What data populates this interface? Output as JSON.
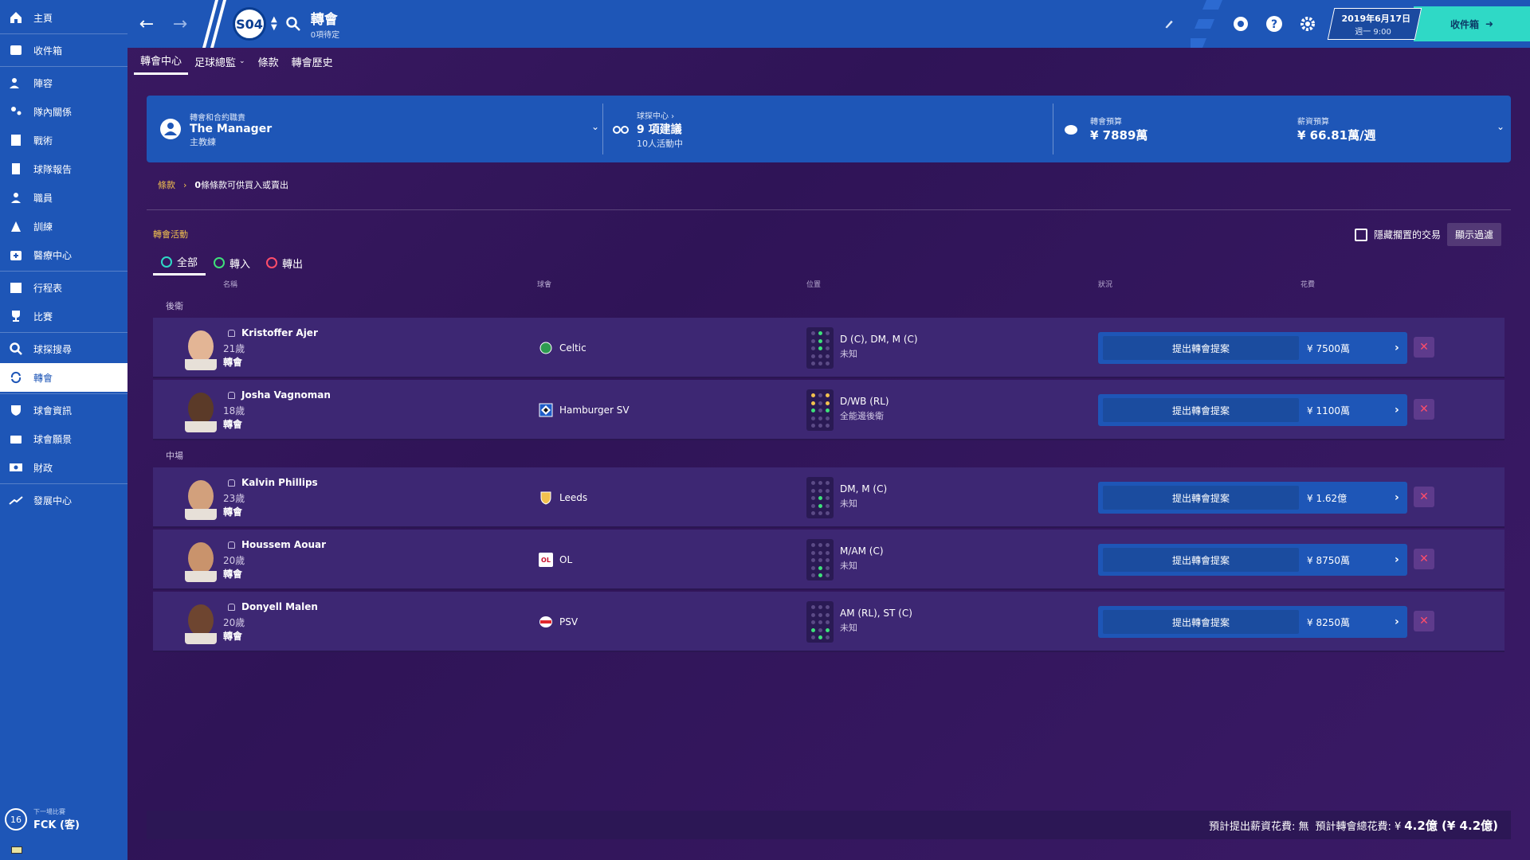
{
  "sidebar": {
    "items": [
      {
        "label": "主頁",
        "icon": "home-icon"
      },
      {
        "label": "收件箱",
        "icon": "inbox-icon"
      },
      {
        "label": "陣容",
        "icon": "squad-icon"
      },
      {
        "label": "隊內關係",
        "icon": "dynamics-icon"
      },
      {
        "label": "戰術",
        "icon": "tactics-icon"
      },
      {
        "label": "球隊報告",
        "icon": "report-icon"
      },
      {
        "label": "職員",
        "icon": "staff-icon"
      },
      {
        "label": "訓練",
        "icon": "training-icon"
      },
      {
        "label": "醫療中心",
        "icon": "medical-icon"
      },
      {
        "label": "行程表",
        "icon": "calendar-icon"
      },
      {
        "label": "比賽",
        "icon": "trophy-icon"
      },
      {
        "label": "球探搜尋",
        "icon": "search-icon"
      },
      {
        "label": "轉會",
        "icon": "transfer-icon"
      },
      {
        "label": "球會資訊",
        "icon": "shield-icon"
      },
      {
        "label": "球會願景",
        "icon": "vision-icon"
      },
      {
        "label": "財政",
        "icon": "finance-icon"
      },
      {
        "label": "發展中心",
        "icon": "development-icon"
      }
    ],
    "next_match_label": "下一場比賽",
    "next_match": "FCK (客)",
    "next_match_badge": "16"
  },
  "topbar": {
    "title": "轉會",
    "subtitle": "0項待定",
    "club_crest": "S04",
    "date": "2019年6月17日",
    "day_time": "週一 9:00",
    "inbox_label": "收件箱"
  },
  "subtabs": [
    "轉會中心",
    "足球總監",
    "條款",
    "轉會歷史"
  ],
  "header_panel": {
    "role_label": "轉會和合約職責",
    "role_name": "The Manager",
    "role_title": "主教練",
    "scout_label": "球探中心",
    "scout_value": "9 項建議",
    "scout_sub": "10人活動中",
    "transfer_budget_label": "轉會預算",
    "transfer_budget": "¥ 7889萬",
    "wage_budget_label": "薪資預算",
    "wage_budget": "¥ 66.81萬/週"
  },
  "breadcrumb": {
    "link": "條款",
    "text_bold": "0",
    "text": "條條款可供買入或賣出"
  },
  "activity": {
    "title": "轉會活動",
    "hide_label": "隱藏擱置的交易",
    "filter_label": "顯示過濾",
    "tabs": [
      "全部",
      "轉入",
      "轉出"
    ],
    "columns": [
      "名稱",
      "球會",
      "位置",
      "狀況",
      "花費"
    ],
    "groups": [
      {
        "label": "後衛",
        "players": [
          {
            "name": "Kristoffer Ajer",
            "age": "21歲",
            "status": "轉會",
            "club": "Celtic",
            "position": "D (C), DM, M (C)",
            "role": "未知",
            "offer": "提出轉會提案",
            "fee": "¥ 7500萬"
          },
          {
            "name": "Josha Vagnoman",
            "age": "18歲",
            "status": "轉會",
            "club": "Hamburger SV",
            "position": "D/WB (RL)",
            "role": "全能邊後衛",
            "offer": "提出轉會提案",
            "fee": "¥ 1100萬"
          }
        ]
      },
      {
        "label": "中場",
        "players": [
          {
            "name": "Kalvin Phillips",
            "age": "23歲",
            "status": "轉會",
            "club": "Leeds",
            "position": "DM, M (C)",
            "role": "未知",
            "offer": "提出轉會提案",
            "fee": "¥ 1.62億"
          },
          {
            "name": "Houssem Aouar",
            "age": "20歲",
            "status": "轉會",
            "club": "OL",
            "position": "M/AM (C)",
            "role": "未知",
            "offer": "提出轉會提案",
            "fee": "¥ 8750萬"
          },
          {
            "name": "Donyell Malen",
            "age": "20歲",
            "status": "轉會",
            "club": "PSV",
            "position": "AM (RL), ST (C)",
            "role": "未知",
            "offer": "提出轉會提案",
            "fee": "¥ 8250萬"
          }
        ]
      }
    ]
  },
  "footer": {
    "wage_text": "預計提出薪資花費: 無",
    "total_label": "預計轉會總花費: ¥",
    "total_value": "4.2億 (¥ 4.2億)"
  }
}
